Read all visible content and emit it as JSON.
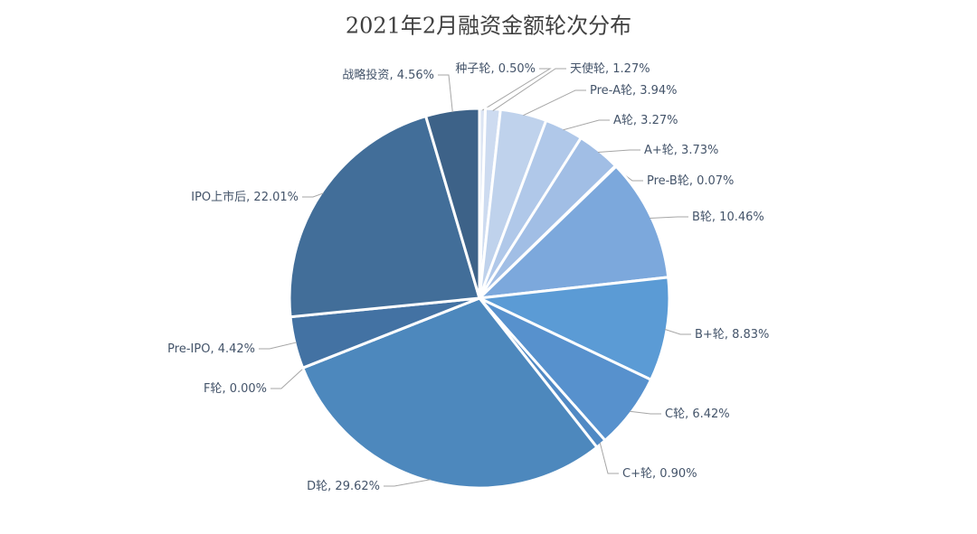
{
  "chart_data": {
    "type": "pie",
    "title": "2021年2月融资金额轮次分布",
    "categories": [
      "种子轮",
      "天使轮",
      "Pre-A轮",
      "A轮",
      "A+轮",
      "Pre-B轮",
      "B轮",
      "B+轮",
      "C轮",
      "C+轮",
      "D轮",
      "F轮",
      "Pre-IPO",
      "IPO上市后",
      "战略投资"
    ],
    "values": [
      0.5,
      1.27,
      3.94,
      3.27,
      3.73,
      0.07,
      10.46,
      8.83,
      6.42,
      0.9,
      29.62,
      0.0,
      4.42,
      22.01,
      4.56
    ],
    "value_labels": [
      ", 0.50%",
      ", 1.27%",
      ", 3.94%",
      ", 3.27%",
      ", 3.73%",
      ", 0.07%",
      ", 10.46%",
      ", 8.83%",
      ", 6.42%",
      ", 0.90%",
      ", 29.62%",
      ", 0.00%",
      ", 4.42%",
      ", 22.01%",
      ", 4.56%"
    ],
    "colors": [
      "#dbe4f3",
      "#cddbf0",
      "#bfd2ec",
      "#b0c8e9",
      "#a1bee5",
      "#93b5e2",
      "#7ca8dc",
      "#5b9bd5",
      "#5791cd",
      "#5089c4",
      "#4d88bd",
      "#4a7fb3",
      "#4372a3",
      "#426e99",
      "#3d6288"
    ]
  }
}
